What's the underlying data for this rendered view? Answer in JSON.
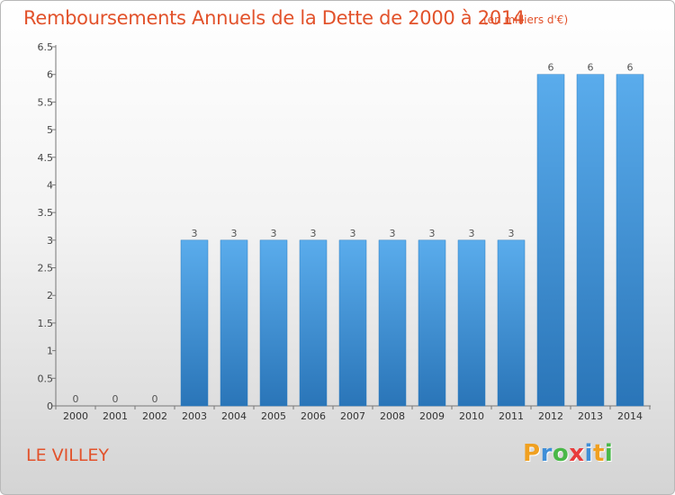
{
  "header": {
    "title": "Remboursements Annuels de la Dette de 2000 à 2014",
    "unit": "(en milliers d'€)"
  },
  "footer": {
    "place": "LE VILLEY",
    "logo_letters": [
      "P",
      "r",
      "o",
      "x",
      "i",
      "t",
      "i"
    ],
    "logo_colors": [
      "#f0a020",
      "#3f8fd8",
      "#49b848",
      "#e83c3c",
      "#3f8fd8",
      "#f0a020",
      "#49b848"
    ]
  },
  "chart_data": {
    "type": "bar",
    "title": "Remboursements Annuels de la Dette de 2000 à 2014",
    "xlabel": "",
    "ylabel": "",
    "categories": [
      "2000",
      "2001",
      "2002",
      "2003",
      "2004",
      "2005",
      "2006",
      "2007",
      "2008",
      "2009",
      "2010",
      "2011",
      "2012",
      "2013",
      "2014"
    ],
    "values": [
      0,
      0,
      0,
      3,
      3,
      3,
      3,
      3,
      3,
      3,
      3,
      3,
      6,
      6,
      6
    ],
    "data_labels": [
      "0",
      "0",
      "0",
      "3",
      "3",
      "3",
      "3",
      "3",
      "3",
      "3",
      "3",
      "3",
      "6",
      "6",
      "6"
    ],
    "y_ticks": [
      "0",
      "0.5",
      "1",
      "1.5",
      "2",
      "2.5",
      "3",
      "3.5",
      "4",
      "4.5",
      "5",
      "5.5",
      "6",
      "6.5"
    ],
    "ylim": [
      0,
      6.5
    ],
    "grid": false,
    "bar_color": "#3d95d6"
  }
}
